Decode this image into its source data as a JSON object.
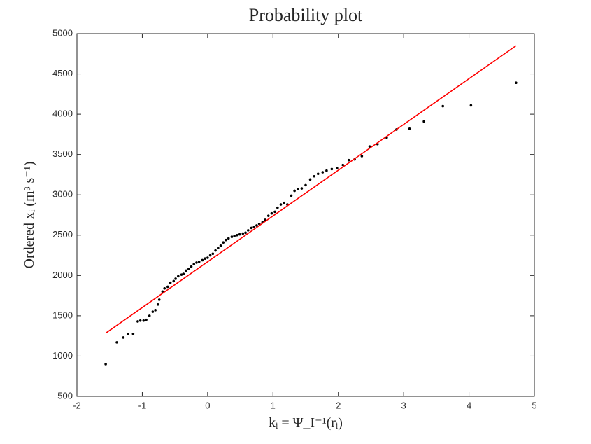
{
  "chart_data": {
    "type": "scatter",
    "title": "Probability plot",
    "xlabel": "kᵢ = Ψ_I⁻¹(rᵢ)",
    "ylabel": "Ordered xᵢ (m³ s⁻¹)",
    "xlim": [
      -2,
      5
    ],
    "xticks": [
      -2,
      -1,
      0,
      1,
      2,
      3,
      4,
      5
    ],
    "ylim": [
      500,
      5000
    ],
    "yticks": [
      500,
      1000,
      1500,
      2000,
      2500,
      3000,
      3500,
      4000,
      4500,
      5000
    ],
    "series": [
      {
        "mode": "markers",
        "color": "#000000",
        "x": [
          -1.56,
          -1.39,
          -1.29,
          -1.22,
          -1.14,
          -1.07,
          -1.03,
          -0.98,
          -0.94,
          -0.89,
          -0.84,
          -0.8,
          -0.76,
          -0.74,
          -0.69,
          -0.66,
          -0.61,
          -0.57,
          -0.52,
          -0.49,
          -0.45,
          -0.4,
          -0.37,
          -0.33,
          -0.29,
          -0.25,
          -0.21,
          -0.17,
          -0.13,
          -0.08,
          -0.04,
          0.0,
          0.04,
          0.08,
          0.12,
          0.16,
          0.2,
          0.24,
          0.28,
          0.32,
          0.37,
          0.41,
          0.45,
          0.49,
          0.54,
          0.58,
          0.62,
          0.67,
          0.71,
          0.75,
          0.79,
          0.84,
          0.88,
          0.93,
          0.98,
          1.03,
          1.07,
          1.12,
          1.17,
          1.22,
          1.28,
          1.33,
          1.38,
          1.44,
          1.5,
          1.57,
          1.63,
          1.69,
          1.76,
          1.82,
          1.9,
          1.98,
          2.07,
          2.16,
          2.25,
          2.36,
          2.48,
          2.6,
          2.74,
          2.89,
          3.09,
          3.31,
          3.6,
          4.03,
          4.72
        ],
        "values": [
          900,
          1170,
          1230,
          1275,
          1275,
          1430,
          1440,
          1440,
          1450,
          1500,
          1550,
          1570,
          1640,
          1700,
          1800,
          1840,
          1860,
          1910,
          1930,
          1960,
          1990,
          2010,
          2020,
          2060,
          2080,
          2110,
          2140,
          2160,
          2170,
          2190,
          2210,
          2220,
          2250,
          2270,
          2310,
          2340,
          2370,
          2410,
          2440,
          2460,
          2480,
          2490,
          2500,
          2510,
          2520,
          2530,
          2560,
          2590,
          2600,
          2620,
          2640,
          2660,
          2690,
          2740,
          2770,
          2790,
          2840,
          2880,
          2900,
          2880,
          2990,
          3050,
          3070,
          3080,
          3120,
          3190,
          3230,
          3260,
          3280,
          3300,
          3320,
          3330,
          3370,
          3430,
          3440,
          3480,
          3600,
          3630,
          3710,
          3810,
          3820,
          3910,
          4100,
          4110,
          4390
        ]
      },
      {
        "mode": "line",
        "color": "#ff0000",
        "x": [
          -1.55,
          4.72
        ],
        "values": [
          1290,
          4850
        ]
      }
    ]
  }
}
